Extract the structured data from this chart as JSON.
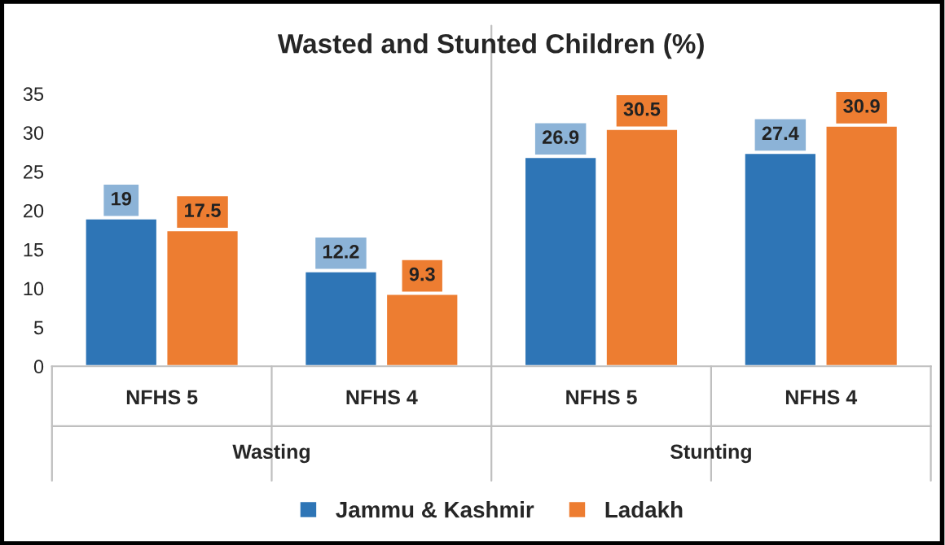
{
  "chart_data": {
    "type": "bar",
    "title": "Wasted and Stunted Children (%)",
    "categories": [
      "NFHS 5",
      "NFHS 4",
      "NFHS 5",
      "NFHS 4"
    ],
    "series": [
      {
        "name": "Jammu & Kashmir",
        "color": "#2e75b6",
        "values": [
          19,
          12.2,
          26.9,
          27.4
        ]
      },
      {
        "name": "Ladakh",
        "color": "#ed7d31",
        "values": [
          17.5,
          9.3,
          30.5,
          30.9
        ]
      }
    ],
    "annotations": [
      "Wasting",
      "Stunting"
    ],
    "ylim": [
      0,
      35
    ],
    "yticks": [
      0,
      5,
      10,
      15,
      20,
      25,
      30,
      35
    ],
    "data_labels": true,
    "legend": "bottom",
    "grid": false
  }
}
